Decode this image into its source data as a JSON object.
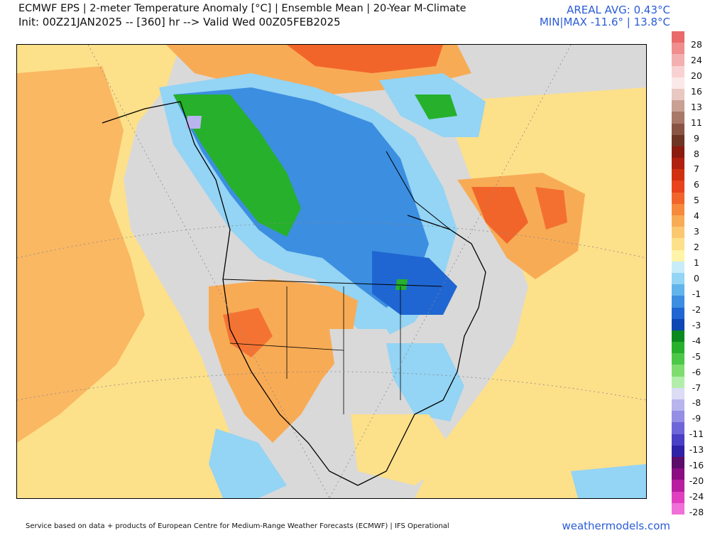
{
  "header": {
    "line1": "ECMWF EPS | 2-meter Temperature Anomaly [°C] | Ensemble Mean | 20-Year M-Climate",
    "line2": "Init: 00Z21JAN2025 -- [360] hr --> Valid Wed 00Z05FEB2025",
    "areal_avg": "AREAL AVG: 0.43°C",
    "min_max": "MIN|MAX -11.6° | 13.8°C"
  },
  "legend": {
    "labels": [
      "28",
      "24",
      "20",
      "16",
      "13",
      "11",
      "9",
      "8",
      "7",
      "6",
      "5",
      "4",
      "3",
      "2",
      "1",
      "0",
      "-1",
      "-2",
      "-3",
      "-4",
      "-5",
      "-6",
      "-7",
      "-8",
      "-9",
      "-11",
      "-13",
      "-16",
      "-20",
      "-24",
      "-28"
    ],
    "colors": [
      "#e96a6a",
      "#f08d8d",
      "#f4b0b0",
      "#f8d2d2",
      "#fbe8e8",
      "#e8c8c0",
      "#c9a094",
      "#a87868",
      "#8a5444",
      "#6e3424",
      "#8b1a0f",
      "#b0200f",
      "#d0300f",
      "#e8431a",
      "#f2652a",
      "#f68a3c",
      "#f8ab55",
      "#fbc870",
      "#fde08a",
      "#fff4a8",
      "#c8ecf8",
      "#94d4f4",
      "#62b4ec",
      "#3c8ee0",
      "#1f66d2",
      "#0e46b4",
      "#0a8a1e",
      "#26b02c",
      "#4cc848",
      "#7fdd70",
      "#b2eeaa",
      "#dcdcf4",
      "#b8b4ee",
      "#948ee4",
      "#6e66d8",
      "#4a40c6",
      "#2e22a6",
      "#5c0c6a",
      "#8a0e82",
      "#b81ea0",
      "#e040c0",
      "#f070d8"
    ]
  },
  "footer": {
    "source": "Service based on data + products of European Centre for Medium-Range Weather Forecasts (ECMWF) | IFS Operational",
    "brand": "weathermodels.com"
  },
  "colors": {
    "land_gray": "#d9d9d9",
    "warm_light": "#fde08a",
    "warm_mid": "#f8ab55",
    "warm_strong": "#f2652a",
    "cold_light": "#94d4f4",
    "cold_mid": "#3c8ee0",
    "cold_strong": "#1f66d2",
    "cold_green": "#26b02c",
    "cold_purple": "#b8b4ee",
    "brand_blue": "#2a5bd7"
  }
}
